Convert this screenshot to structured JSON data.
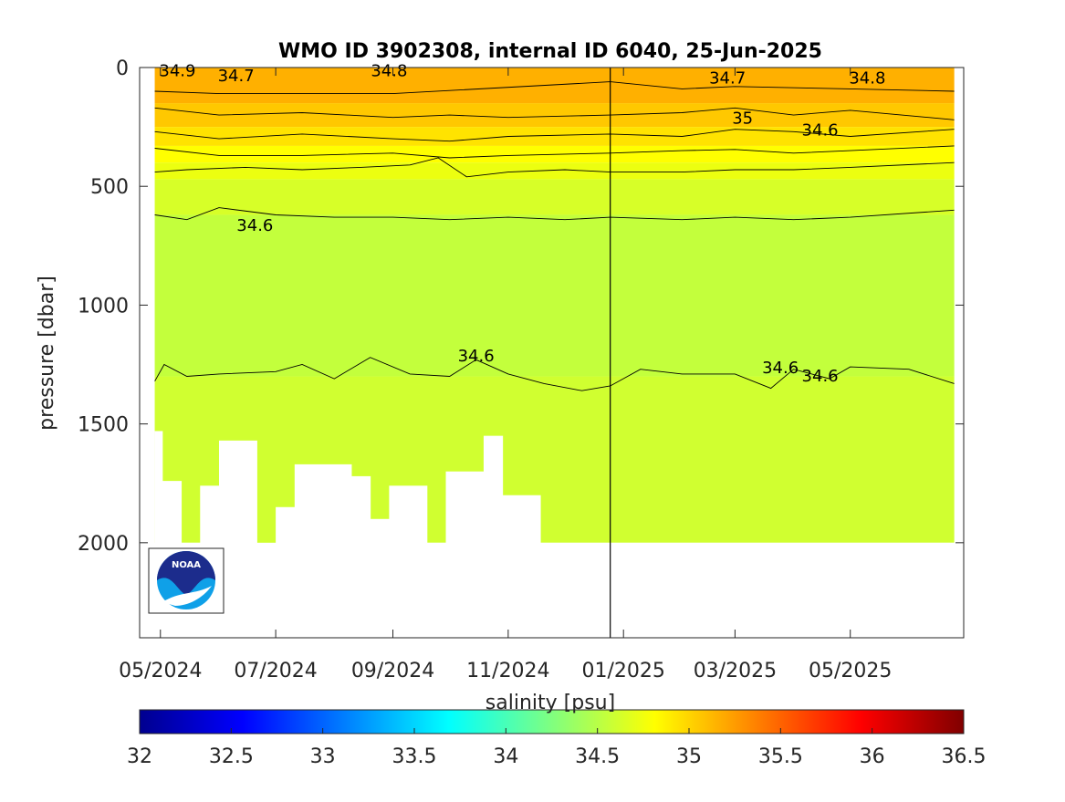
{
  "chart_data": {
    "type": "contour",
    "title": "WMO ID 3902308, internal ID 6040, 25-Jun-2025",
    "ylabel": "pressure [dbar]",
    "xlabel": "",
    "ylim": [
      0,
      2400
    ],
    "y_reversed": true,
    "yticks": [
      0,
      500,
      1000,
      1500,
      2000
    ],
    "yticklabels": [
      "0",
      "500",
      "1000",
      "1500",
      "2000"
    ],
    "xlim": [
      "2024-04-20",
      "2025-06-30"
    ],
    "xticks": [
      "2024-05-01",
      "2024-07-01",
      "2024-09-01",
      "2024-11-01",
      "2025-01-01",
      "2025-03-01",
      "2025-05-01"
    ],
    "xticklabels": [
      "05/2024",
      "07/2024",
      "09/2024",
      "11/2024",
      "01/2025",
      "03/2025",
      "05/2025"
    ],
    "vertical_line_date": "2024-12-25",
    "first_profile_date": "2024-04-28",
    "last_profile_date": "2025-06-25",
    "colorbar": {
      "label": "salinity [psu]",
      "range": [
        32,
        36.5
      ],
      "ticks": [
        32,
        32.5,
        33,
        33.5,
        34,
        34.5,
        35,
        35.5,
        36,
        36.5
      ],
      "ticklabels": [
        "32",
        "32.5",
        "33",
        "33.5",
        "34",
        "34.5",
        "35",
        "35.5",
        "36",
        "36.5"
      ],
      "colormap": "jet"
    },
    "salinity_layers": [
      {
        "depth_top": 0,
        "depth_bottom": 150,
        "salinity": 35.2,
        "color": "#ffb000"
      },
      {
        "depth_top": 150,
        "depth_bottom": 250,
        "salinity": 35.1,
        "color": "#ffc800"
      },
      {
        "depth_top": 250,
        "depth_bottom": 330,
        "salinity": 35.0,
        "color": "#ffe300"
      },
      {
        "depth_top": 330,
        "depth_bottom": 400,
        "salinity": 34.9,
        "color": "#ffff00"
      },
      {
        "depth_top": 400,
        "depth_bottom": 470,
        "salinity": 34.8,
        "color": "#ecff10"
      },
      {
        "depth_top": 470,
        "depth_bottom": 620,
        "salinity": 34.7,
        "color": "#d7ff28"
      },
      {
        "depth_top": 620,
        "depth_bottom": 1300,
        "salinity": 34.6,
        "color": "#c3ff3c"
      },
      {
        "depth_top": 1300,
        "depth_bottom": 2000,
        "salinity": 34.6,
        "color": "#d0ff30"
      }
    ],
    "profile_max_depth": [
      {
        "date": "2024-04-28",
        "pressure": 1530
      },
      {
        "date": "2024-05-02",
        "pressure": 1740
      },
      {
        "date": "2024-05-12",
        "pressure": 2000
      },
      {
        "date": "2024-05-22",
        "pressure": 1760
      },
      {
        "date": "2024-06-01",
        "pressure": 1570
      },
      {
        "date": "2024-06-21",
        "pressure": 2010
      },
      {
        "date": "2024-07-01",
        "pressure": 1850
      },
      {
        "date": "2024-07-11",
        "pressure": 1670
      },
      {
        "date": "2024-08-10",
        "pressure": 1720
      },
      {
        "date": "2024-08-20",
        "pressure": 1900
      },
      {
        "date": "2024-08-30",
        "pressure": 1760
      },
      {
        "date": "2024-09-19",
        "pressure": 2000
      },
      {
        "date": "2024-09-29",
        "pressure": 1700
      },
      {
        "date": "2024-10-19",
        "pressure": 1550
      },
      {
        "date": "2024-10-29",
        "pressure": 1800
      },
      {
        "date": "2024-11-18",
        "pressure": 2000
      },
      {
        "date": "2025-06-25",
        "pressure": 2000
      }
    ],
    "contour_lines": [
      {
        "level": 34.6,
        "points": [
          [
            "2024-04-28",
            620
          ],
          [
            "2024-05-15",
            640
          ],
          [
            "2024-06-01",
            590
          ],
          [
            "2024-07-01",
            620
          ],
          [
            "2024-08-01",
            630
          ],
          [
            "2024-09-01",
            630
          ],
          [
            "2024-10-01",
            640
          ],
          [
            "2024-11-01",
            630
          ],
          [
            "2024-12-01",
            640
          ],
          [
            "2024-12-25",
            630
          ],
          [
            "2025-02-01",
            640
          ],
          [
            "2025-03-01",
            630
          ],
          [
            "2025-04-01",
            640
          ],
          [
            "2025-05-01",
            630
          ],
          [
            "2025-06-25",
            600
          ]
        ]
      },
      {
        "level": 34.6,
        "points": [
          [
            "2024-04-28",
            1320
          ],
          [
            "2024-05-03",
            1250
          ],
          [
            "2024-05-15",
            1300
          ],
          [
            "2024-06-01",
            1290
          ],
          [
            "2024-07-01",
            1280
          ],
          [
            "2024-07-15",
            1250
          ],
          [
            "2024-08-01",
            1310
          ],
          [
            "2024-08-20",
            1220
          ],
          [
            "2024-09-10",
            1290
          ],
          [
            "2024-10-01",
            1300
          ],
          [
            "2024-10-15",
            1230
          ],
          [
            "2024-11-01",
            1290
          ],
          [
            "2024-11-20",
            1330
          ],
          [
            "2024-12-10",
            1360
          ],
          [
            "2024-12-25",
            1340
          ],
          [
            "2025-01-10",
            1270
          ],
          [
            "2025-02-01",
            1290
          ],
          [
            "2025-03-01",
            1290
          ],
          [
            "2025-03-20",
            1350
          ],
          [
            "2025-04-01",
            1270
          ],
          [
            "2025-04-20",
            1310
          ],
          [
            "2025-05-01",
            1260
          ],
          [
            "2025-06-01",
            1270
          ],
          [
            "2025-06-25",
            1330
          ]
        ]
      },
      {
        "level": 34.7,
        "points": [
          [
            "2024-04-28",
            440
          ],
          [
            "2024-05-15",
            430
          ],
          [
            "2024-06-15",
            420
          ],
          [
            "2024-07-15",
            430
          ],
          [
            "2024-08-15",
            420
          ],
          [
            "2024-09-10",
            410
          ],
          [
            "2024-09-25",
            380
          ],
          [
            "2024-10-10",
            460
          ],
          [
            "2024-11-01",
            440
          ],
          [
            "2024-12-01",
            430
          ],
          [
            "2024-12-25",
            440
          ],
          [
            "2025-02-01",
            440
          ],
          [
            "2025-03-01",
            430
          ],
          [
            "2025-04-01",
            430
          ],
          [
            "2025-05-01",
            420
          ],
          [
            "2025-06-25",
            400
          ]
        ]
      },
      {
        "level": 34.8,
        "points": [
          [
            "2024-04-28",
            340
          ],
          [
            "2024-06-01",
            370
          ],
          [
            "2024-07-15",
            370
          ],
          [
            "2024-09-01",
            360
          ],
          [
            "2024-10-01",
            380
          ],
          [
            "2024-11-01",
            370
          ],
          [
            "2024-12-25",
            360
          ],
          [
            "2025-02-01",
            350
          ],
          [
            "2025-03-01",
            345
          ],
          [
            "2025-04-01",
            360
          ],
          [
            "2025-05-01",
            350
          ],
          [
            "2025-06-25",
            330
          ]
        ]
      },
      {
        "level": 34.9,
        "points": [
          [
            "2024-04-28",
            270
          ],
          [
            "2024-06-01",
            300
          ],
          [
            "2024-07-15",
            280
          ],
          [
            "2024-09-01",
            300
          ],
          [
            "2024-10-01",
            310
          ],
          [
            "2024-11-01",
            290
          ],
          [
            "2024-12-25",
            280
          ],
          [
            "2025-02-01",
            290
          ],
          [
            "2025-03-01",
            260
          ],
          [
            "2025-04-01",
            270
          ],
          [
            "2025-05-01",
            290
          ],
          [
            "2025-06-25",
            260
          ]
        ]
      },
      {
        "level": 35,
        "points": [
          [
            "2024-04-28",
            170
          ],
          [
            "2024-06-01",
            200
          ],
          [
            "2024-07-15",
            190
          ],
          [
            "2024-09-01",
            210
          ],
          [
            "2024-10-01",
            200
          ],
          [
            "2024-11-01",
            210
          ],
          [
            "2024-12-25",
            200
          ],
          [
            "2025-02-01",
            190
          ],
          [
            "2025-03-01",
            170
          ],
          [
            "2025-04-01",
            200
          ],
          [
            "2025-05-01",
            180
          ],
          [
            "2025-06-25",
            220
          ]
        ]
      },
      {
        "level": 35.1,
        "points": [
          [
            "2024-04-28",
            100
          ],
          [
            "2024-06-01",
            110
          ],
          [
            "2024-09-01",
            110
          ],
          [
            "2024-12-25",
            60
          ],
          [
            "2025-02-01",
            90
          ],
          [
            "2025-03-01",
            80
          ],
          [
            "2025-05-01",
            90
          ],
          [
            "2025-06-25",
            100
          ]
        ]
      }
    ],
    "contour_labels": [
      {
        "text": "34.9",
        "date": "2024-05-10",
        "pressure": 10
      },
      {
        "text": "34.7",
        "date": "2024-06-10",
        "pressure": 30
      },
      {
        "text": "34.8",
        "date": "2024-08-30",
        "pressure": 10
      },
      {
        "text": "34.6",
        "date": "2024-06-20",
        "pressure": 660
      },
      {
        "text": "34.6",
        "date": "2024-10-15",
        "pressure": 1210
      },
      {
        "text": "35",
        "date": "2025-03-05",
        "pressure": 210
      },
      {
        "text": "34.6",
        "date": "2025-04-15",
        "pressure": 260
      },
      {
        "text": "34.7",
        "date": "2025-02-25",
        "pressure": 40
      },
      {
        "text": "34.8",
        "date": "2025-05-10",
        "pressure": 40
      },
      {
        "text": "34.6",
        "date": "2025-03-25",
        "pressure": 1260
      },
      {
        "text": "34.6",
        "date": "2025-04-15",
        "pressure": 1295
      }
    ],
    "legend": "none",
    "grid": false
  },
  "logo": {
    "text": "NOAA"
  }
}
